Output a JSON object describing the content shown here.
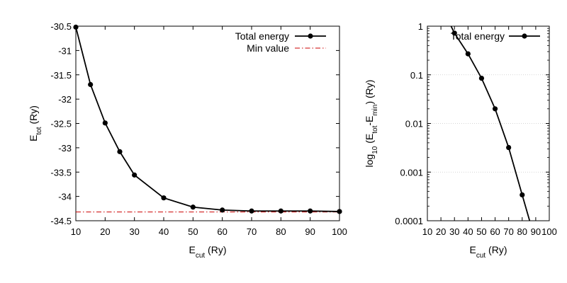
{
  "chart_data": [
    {
      "type": "line",
      "ylabel": {
        "main": "E",
        "sub": "tot",
        "rest": " (Ry)"
      },
      "xlabel": {
        "main": "E",
        "sub": "cut",
        "rest": " (Ry)"
      },
      "xlim": [
        10,
        100
      ],
      "ylim": [
        -34.5,
        -30.5
      ],
      "xticks": [
        10,
        20,
        30,
        40,
        50,
        60,
        70,
        80,
        90,
        100
      ],
      "yticks": [
        -30.5,
        -31,
        -31.5,
        -32,
        -32.5,
        -33,
        -33.5,
        -34,
        -34.5
      ],
      "legend_placement": "top-right",
      "series": [
        {
          "name": "Total energy",
          "style": "line-points",
          "color": "#000000",
          "x": [
            10,
            15,
            20,
            25,
            30,
            40,
            50,
            60,
            70,
            80,
            90,
            100
          ],
          "y": [
            -30.52,
            -31.7,
            -32.49,
            -33.08,
            -33.56,
            -34.03,
            -34.22,
            -34.28,
            -34.3,
            -34.3,
            -34.3,
            -34.31
          ]
        },
        {
          "name": "Min value",
          "style": "dash-dot",
          "color": "#cc0000",
          "y_constant": -34.32
        }
      ]
    },
    {
      "type": "line",
      "scale": "log-y",
      "ylabel": {
        "pre": "log",
        "pre_sub": "10",
        "mid": " (E",
        "sub1": "tot",
        "dash": "-E",
        "sub2": "min",
        "rest": ") (Ry)"
      },
      "xlabel": {
        "main": "E",
        "sub": "cut",
        "rest": " (Ry)"
      },
      "xlim": [
        10,
        100
      ],
      "ylim": [
        0.0001,
        1
      ],
      "xticks": [
        10,
        20,
        30,
        40,
        50,
        60,
        70,
        80,
        90,
        100
      ],
      "yticks": [
        {
          "value": 1,
          "label": "1"
        },
        {
          "value": 0.1,
          "label": "0.1"
        },
        {
          "value": 0.01,
          "label": "0.01"
        },
        {
          "value": 0.001,
          "label": "0.001"
        },
        {
          "value": 0.0001,
          "label": "0.0001"
        }
      ],
      "grid": "horizontal-dotted",
      "legend_placement": "top-right",
      "series": [
        {
          "name": "Total energy",
          "style": "line-points",
          "color": "#000000",
          "x": [
            30,
            40,
            50,
            60,
            70,
            80
          ],
          "y": [
            0.72,
            0.27,
            0.085,
            0.02,
            0.0032,
            0.00034
          ],
          "line_extends_from": [
            27.5,
            1.0
          ],
          "line_extends_to": [
            85.5,
            0.0001
          ]
        }
      ]
    }
  ]
}
